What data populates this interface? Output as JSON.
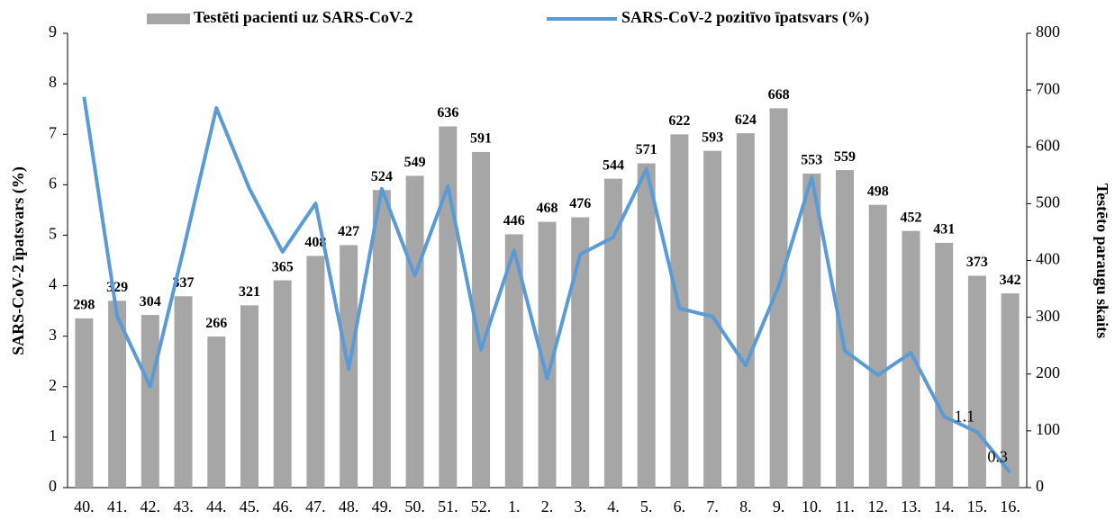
{
  "chart_data": {
    "type": "bar-line",
    "categories": [
      "40.",
      "41.",
      "42.",
      "43.",
      "44.",
      "45.",
      "46.",
      "47.",
      "48.",
      "49.",
      "50.",
      "51.",
      "52.",
      "1.",
      "2.",
      "3.",
      "4.",
      "5.",
      "6.",
      "7.",
      "8.",
      "9.",
      "10.",
      "11.",
      "12.",
      "13.",
      "14.",
      "15.",
      "16."
    ],
    "y_label": "SARS-CoV-2 īpatsvars (%)",
    "y2_label": "Testēto paraugu skaits",
    "ylim": [
      0,
      9
    ],
    "yticks": [
      0,
      1,
      2,
      3,
      4,
      5,
      6,
      7,
      8,
      9
    ],
    "y2lim": [
      0,
      800
    ],
    "y2ticks": [
      0,
      100,
      200,
      300,
      400,
      500,
      600,
      700,
      800
    ],
    "legend": "top",
    "series": [
      {
        "name": "Testēti pacienti uz SARS-CoV-2",
        "type": "bar",
        "axis": "y2",
        "color": "#a6a6a6",
        "data_labels": true,
        "values": [
          298,
          329,
          304,
          337,
          266,
          321,
          365,
          408,
          427,
          524,
          549,
          636,
          591,
          446,
          468,
          476,
          544,
          571,
          622,
          593,
          624,
          668,
          553,
          559,
          498,
          452,
          431,
          373,
          342
        ]
      },
      {
        "name": "SARS-CoV-2 pozitīvo īpatsvars (%)",
        "type": "line",
        "axis": "y",
        "color": "#5b9bd5",
        "values": [
          7.74,
          3.39,
          2.0,
          4.7,
          7.52,
          5.92,
          4.67,
          5.63,
          2.35,
          5.92,
          4.2,
          5.97,
          2.73,
          4.7,
          2.16,
          4.62,
          4.96,
          6.31,
          3.55,
          3.39,
          2.42,
          3.99,
          6.15,
          2.71,
          2.23,
          2.67,
          1.41,
          1.1,
          0.3
        ],
        "value_labels": [
          null,
          null,
          null,
          null,
          null,
          null,
          null,
          null,
          null,
          null,
          null,
          null,
          null,
          null,
          null,
          null,
          null,
          null,
          null,
          null,
          null,
          null,
          null,
          null,
          null,
          null,
          null,
          "1.1",
          "0.3"
        ]
      }
    ]
  }
}
